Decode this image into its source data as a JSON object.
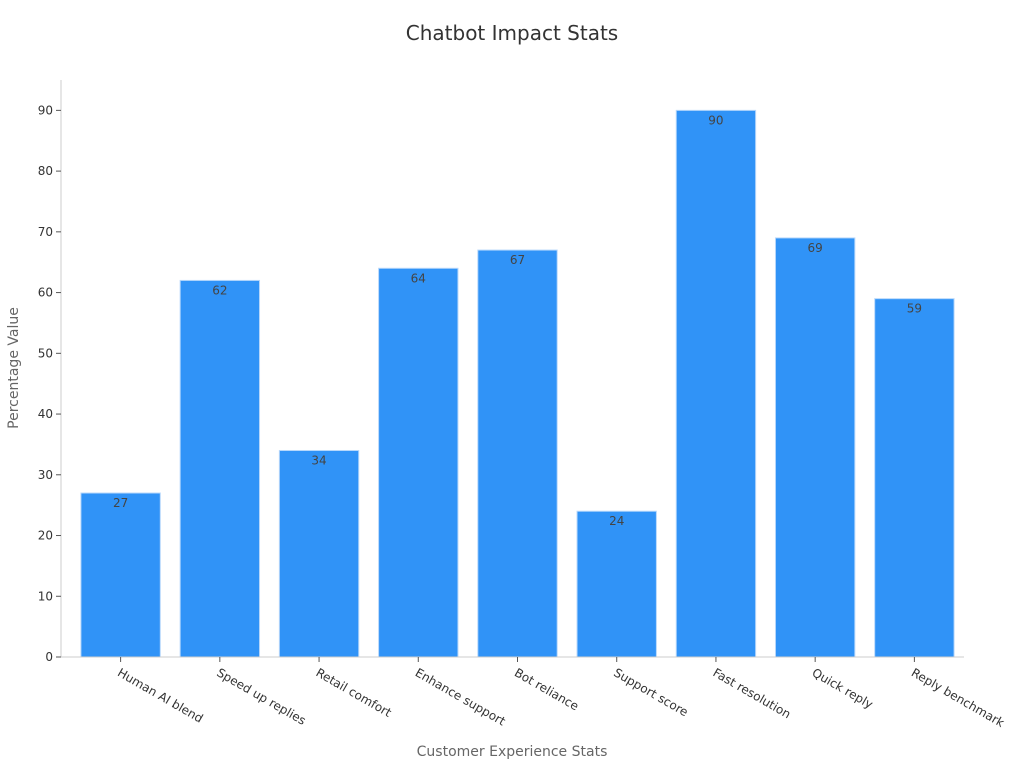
{
  "chart_data": {
    "type": "bar",
    "title": "Chatbot Impact Stats",
    "xlabel": "Customer Experience Stats",
    "ylabel": "Percentage Value",
    "categories": [
      "Human AI blend",
      "Speed up replies",
      "Retail comfort",
      "Enhance support",
      "Bot reliance",
      "Support score",
      "Fast resolution",
      "Quick reply",
      "Reply benchmark"
    ],
    "values": [
      27,
      62,
      34,
      64,
      67,
      24,
      90,
      69,
      59
    ],
    "ylim": [
      0,
      95
    ],
    "yticks": [
      0,
      10,
      20,
      30,
      40,
      50,
      60,
      70,
      80,
      90
    ],
    "grid": false,
    "legend": "none",
    "bar_color": "#3093f7"
  }
}
